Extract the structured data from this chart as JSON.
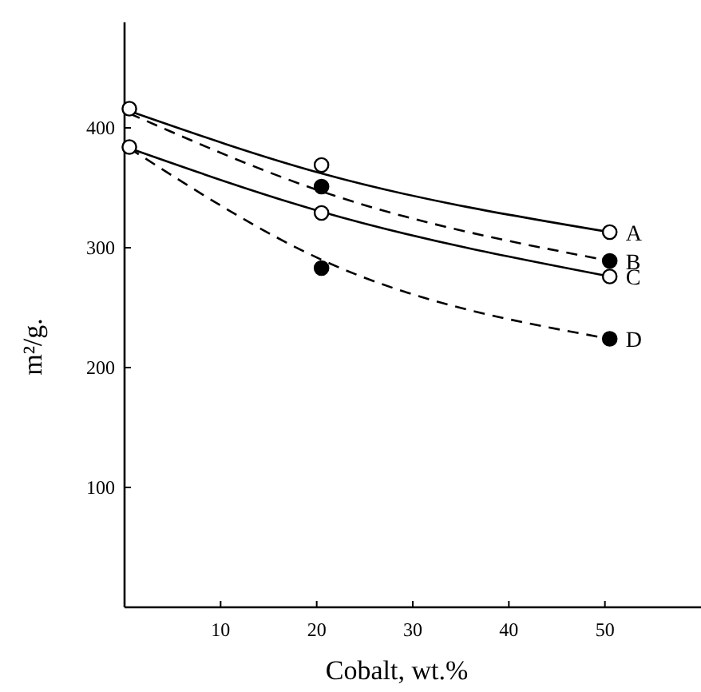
{
  "chart_data": {
    "type": "line",
    "xlabel": "Cobalt, wt.%",
    "ylabel": "m²/g.",
    "xlim": [
      0,
      60
    ],
    "ylim": [
      0,
      488
    ],
    "xticks": [
      10,
      20,
      30,
      40,
      50
    ],
    "yticks": [
      100,
      200,
      300,
      400
    ],
    "grid": false,
    "series": [
      {
        "name": "A",
        "color": "#000000",
        "line_style": "solid",
        "marker": "none",
        "x": [
          0.5,
          20.5,
          50.5
        ],
        "values": [
          414,
          362,
          313
        ]
      },
      {
        "name": "B",
        "color": "#000000",
        "line_style": "dashed",
        "marker": "none",
        "x": [
          0.5,
          20.5,
          50.5
        ],
        "values": [
          412,
          347,
          289
        ]
      },
      {
        "name": "C",
        "color": "#000000",
        "line_style": "solid",
        "marker": "none",
        "x": [
          0.5,
          20.5,
          50.5
        ],
        "values": [
          383,
          330,
          276
        ]
      },
      {
        "name": "D",
        "color": "#000000",
        "line_style": "dashed",
        "marker": "none",
        "x": [
          0.5,
          20.5,
          50.5
        ],
        "values": [
          383,
          290,
          224
        ]
      },
      {
        "type": "scatter",
        "color": "#ffffff",
        "marker": "circle",
        "x": [
          0.5,
          0.5,
          20.5,
          20.5,
          50.5,
          50.5
        ],
        "values": [
          416,
          384,
          369,
          329,
          313,
          276
        ]
      },
      {
        "type": "scatter",
        "color": "#000000",
        "marker": "circle",
        "x": [
          20.5,
          20.5,
          50.5,
          50.5
        ],
        "values": [
          351,
          283,
          289,
          224
        ]
      }
    ]
  }
}
